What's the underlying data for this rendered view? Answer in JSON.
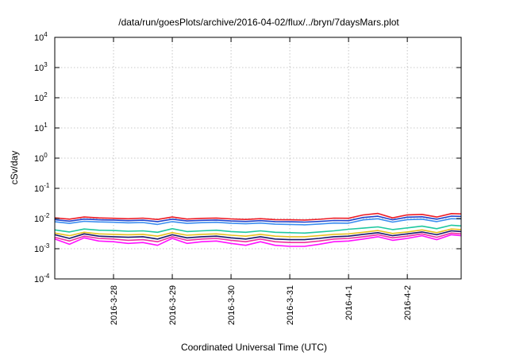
{
  "chart_data": {
    "type": "line",
    "title": "/data/run/goesPlots/archive/2016-04-02/flux/../bryn/7daysMars.plot",
    "xlabel": "Coordinated Universal Time (UTC)",
    "ylabel": "cSv/day",
    "yscale": "log",
    "ylim": [
      0.0001,
      10000
    ],
    "y_ticks": [
      {
        "base": "10",
        "exp": "-4",
        "value": 0.0001
      },
      {
        "base": "10",
        "exp": "-3",
        "value": 0.001
      },
      {
        "base": "10",
        "exp": "-2",
        "value": 0.01
      },
      {
        "base": "10",
        "exp": "-1",
        "value": 0.1
      },
      {
        "base": "10",
        "exp": "0",
        "value": 1
      },
      {
        "base": "10",
        "exp": "1",
        "value": 10
      },
      {
        "base": "10",
        "exp": "2",
        "value": 100
      },
      {
        "base": "10",
        "exp": "3",
        "value": 1000
      },
      {
        "base": "10",
        "exp": "4",
        "value": 10000
      }
    ],
    "xlim": [
      "2016-03-27 00:00",
      "2016-04-02 22:00"
    ],
    "x_ticks": [
      {
        "label": "2016-3-28",
        "value": "2016-03-28 00:00"
      },
      {
        "label": "2016-3-29",
        "value": "2016-03-29 00:00"
      },
      {
        "label": "2016-3-30",
        "value": "2016-03-30 00:00"
      },
      {
        "label": "2016-3-31",
        "value": "2016-03-31 00:00"
      },
      {
        "label": "2016-4-1",
        "value": "2016-04-01 00:00"
      },
      {
        "label": "2016-4-2",
        "value": "2016-04-02 00:00"
      }
    ],
    "grid": true,
    "x_times": [
      "2016-03-27 00:00",
      "2016-03-27 06:00",
      "2016-03-27 12:00",
      "2016-03-27 18:00",
      "2016-03-28 00:00",
      "2016-03-28 06:00",
      "2016-03-28 12:00",
      "2016-03-28 18:00",
      "2016-03-29 00:00",
      "2016-03-29 06:00",
      "2016-03-29 12:00",
      "2016-03-29 18:00",
      "2016-03-30 00:00",
      "2016-03-30 06:00",
      "2016-03-30 12:00",
      "2016-03-30 18:00",
      "2016-03-31 00:00",
      "2016-03-31 06:00",
      "2016-03-31 12:00",
      "2016-03-31 18:00",
      "2016-04-01 00:00",
      "2016-04-01 06:00",
      "2016-04-01 12:00",
      "2016-04-01 18:00",
      "2016-04-02 00:00",
      "2016-04-02 06:00",
      "2016-04-02 12:00",
      "2016-04-02 18:00",
      "2016-04-02 22:00"
    ],
    "series": [
      {
        "color": "#ee1c25",
        "values": [
          0.0105,
          0.0095,
          0.0112,
          0.0105,
          0.0102,
          0.0098,
          0.0103,
          0.0093,
          0.0112,
          0.0096,
          0.0101,
          0.0104,
          0.0097,
          0.0093,
          0.0099,
          0.0092,
          0.0091,
          0.0089,
          0.0094,
          0.0103,
          0.0102,
          0.0131,
          0.0147,
          0.0105,
          0.0132,
          0.0137,
          0.0112,
          0.0146,
          0.0142
        ]
      },
      {
        "color": "#2244cc",
        "values": [
          0.0092,
          0.0082,
          0.0096,
          0.0091,
          0.0089,
          0.0085,
          0.0088,
          0.0079,
          0.0095,
          0.0083,
          0.0087,
          0.0089,
          0.0083,
          0.008,
          0.0085,
          0.0079,
          0.0078,
          0.0076,
          0.008,
          0.0086,
          0.0085,
          0.0108,
          0.0119,
          0.0091,
          0.0111,
          0.0114,
          0.0095,
          0.012,
          0.0118
        ]
      },
      {
        "color": "#3c8ef0",
        "values": [
          0.0078,
          0.0069,
          0.0081,
          0.0077,
          0.0075,
          0.0072,
          0.0074,
          0.0064,
          0.0079,
          0.0069,
          0.0073,
          0.0075,
          0.007,
          0.0067,
          0.0071,
          0.0065,
          0.0064,
          0.0062,
          0.0066,
          0.0071,
          0.007,
          0.009,
          0.0098,
          0.0076,
          0.0092,
          0.0095,
          0.0079,
          0.0099,
          0.0097
        ]
      },
      {
        "color": "#1fc8a0",
        "values": [
          0.0042,
          0.0036,
          0.0045,
          0.0041,
          0.004,
          0.0038,
          0.0039,
          0.0035,
          0.0046,
          0.0037,
          0.0039,
          0.0041,
          0.0037,
          0.0035,
          0.0039,
          0.0035,
          0.0034,
          0.0033,
          0.0036,
          0.0039,
          0.0044,
          0.0048,
          0.0053,
          0.0043,
          0.0049,
          0.0056,
          0.0046,
          0.006,
          0.0057
        ]
      },
      {
        "color": "#e8c020",
        "values": [
          0.0033,
          0.0027,
          0.0035,
          0.0031,
          0.003,
          0.0029,
          0.003,
          0.0026,
          0.0034,
          0.0028,
          0.003,
          0.0031,
          0.0028,
          0.0026,
          0.003,
          0.0026,
          0.0025,
          0.0025,
          0.0027,
          0.003,
          0.0031,
          0.0035,
          0.004,
          0.0032,
          0.0036,
          0.0042,
          0.0034,
          0.0045,
          0.0043
        ]
      },
      {
        "color": "#1a1a6e",
        "values": [
          0.0029,
          0.0022,
          0.0031,
          0.0026,
          0.0025,
          0.0024,
          0.0025,
          0.0021,
          0.0029,
          0.0023,
          0.0025,
          0.0026,
          0.0023,
          0.0021,
          0.0025,
          0.0021,
          0.002,
          0.002,
          0.0022,
          0.0025,
          0.0026,
          0.003,
          0.0034,
          0.0027,
          0.0031,
          0.0036,
          0.0029,
          0.0039,
          0.0037
        ]
      },
      {
        "color": "#ee30a0",
        "values": [
          0.0024,
          0.0018,
          0.0026,
          0.0022,
          0.0021,
          0.0019,
          0.002,
          0.0017,
          0.0025,
          0.0019,
          0.0021,
          0.0022,
          0.0019,
          0.0017,
          0.0021,
          0.0017,
          0.0016,
          0.0016,
          0.0018,
          0.0021,
          0.0022,
          0.0025,
          0.0029,
          0.0023,
          0.0026,
          0.0031,
          0.0024,
          0.0033,
          0.0031
        ]
      },
      {
        "color": "#ff10ff",
        "values": [
          0.0021,
          0.0014,
          0.0023,
          0.0018,
          0.0017,
          0.0015,
          0.0016,
          0.0013,
          0.0022,
          0.0015,
          0.0017,
          0.0018,
          0.0015,
          0.0013,
          0.0017,
          0.0013,
          0.0012,
          0.0012,
          0.0014,
          0.0017,
          0.0018,
          0.0021,
          0.0025,
          0.0019,
          0.0022,
          0.0027,
          0.002,
          0.0029,
          0.0027
        ]
      }
    ]
  }
}
